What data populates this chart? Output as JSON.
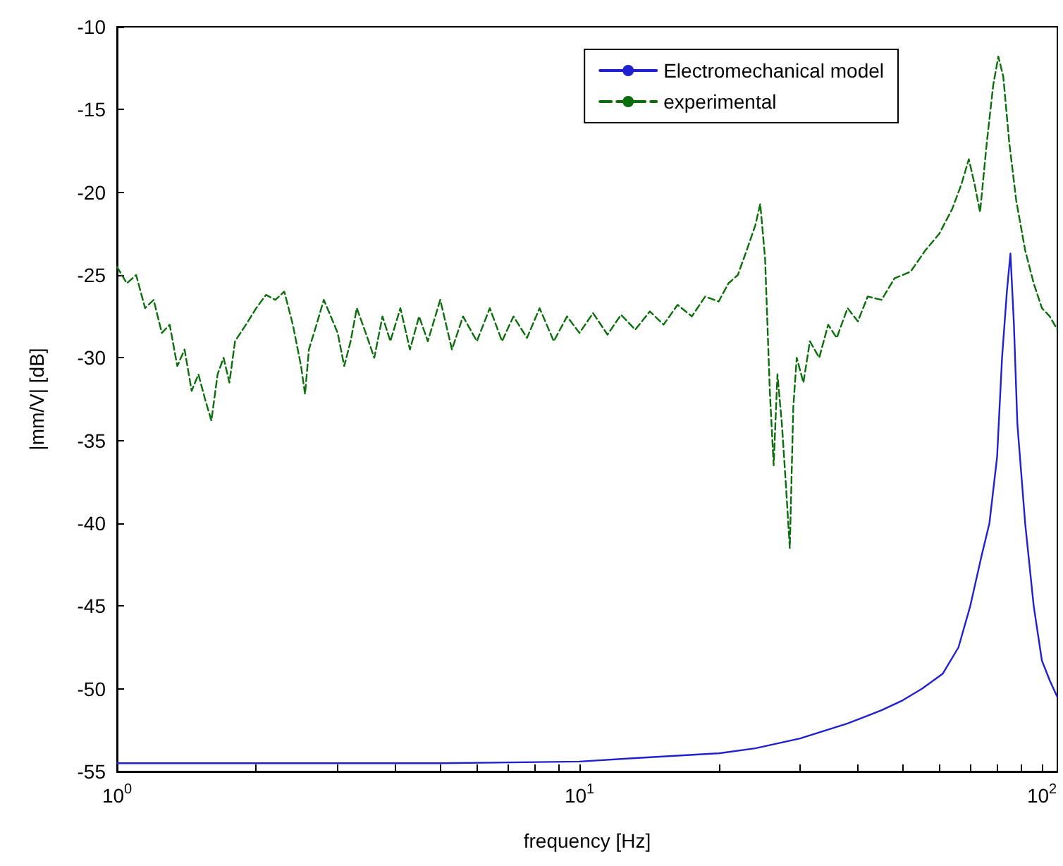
{
  "chart_data": {
    "type": "line",
    "xlabel": "frequency [Hz]",
    "ylabel": "|mm/V| [dB]",
    "log": "x",
    "xlim": [
      1,
      108
    ],
    "ylim": [
      -55,
      -10
    ],
    "xticks": [
      {
        "value": 1,
        "label": "10$^{0}$"
      },
      {
        "value": 2,
        "label": null
      },
      {
        "value": 3,
        "label": null
      },
      {
        "value": 4,
        "label": null
      },
      {
        "value": 5,
        "label": null
      },
      {
        "value": 6,
        "label": null
      },
      {
        "value": 7,
        "label": null
      },
      {
        "value": 8,
        "label": null
      },
      {
        "value": 9,
        "label": null
      },
      {
        "value": 10,
        "label": "10$^{1}$"
      },
      {
        "value": 20,
        "label": null
      },
      {
        "value": 30,
        "label": null
      },
      {
        "value": 40,
        "label": null
      },
      {
        "value": 50,
        "label": null
      },
      {
        "value": 60,
        "label": null
      },
      {
        "value": 70,
        "label": null
      },
      {
        "value": 80,
        "label": null
      },
      {
        "value": 90,
        "label": null
      },
      {
        "value": 100,
        "label": "10$^{2}$"
      }
    ],
    "yticks": [
      -55,
      -50,
      -45,
      -40,
      -35,
      -30,
      -25,
      -20,
      -15,
      -10
    ],
    "grid": false,
    "legend": "top right",
    "marker": "none",
    "series": [
      {
        "name": "Electromechanical model",
        "color": "#2020d0",
        "line_style": "solid",
        "x": [
          1,
          5,
          10,
          13,
          20,
          24,
          30,
          38,
          45,
          50,
          55,
          61,
          66,
          70,
          74,
          77,
          80,
          82,
          84,
          85.5,
          87,
          88.5,
          92,
          96,
          100,
          104,
          108
        ],
        "values": [
          -54.5,
          -54.5,
          -54.4,
          -54.2,
          -53.9,
          -53.6,
          -53,
          -52.1,
          -51.3,
          -50.7,
          -50,
          -49.1,
          -47.5,
          -45,
          -42,
          -40,
          -36,
          -30,
          -26,
          -23.7,
          -28,
          -34,
          -40,
          -45,
          -48.3,
          -49.5,
          -50.5
        ]
      },
      {
        "name": "experimental",
        "color": "#0a6e0a",
        "line_style": "dashed",
        "x": [
          1,
          1.05,
          1.1,
          1.15,
          1.2,
          1.25,
          1.3,
          1.35,
          1.4,
          1.45,
          1.5,
          1.55,
          1.6,
          1.65,
          1.7,
          1.75,
          1.8,
          1.9,
          2,
          2.1,
          2.2,
          2.3,
          2.4,
          2.5,
          2.55,
          2.6,
          2.7,
          2.8,
          2.9,
          3,
          3.1,
          3.2,
          3.3,
          3.45,
          3.6,
          3.75,
          3.9,
          4.1,
          4.3,
          4.5,
          4.7,
          5,
          5.3,
          5.6,
          6,
          6.4,
          6.8,
          7.2,
          7.7,
          8.2,
          8.8,
          9.4,
          10,
          10.7,
          11.5,
          12.3,
          13.2,
          14.2,
          15.2,
          16.3,
          17.5,
          18.7,
          20,
          21,
          22,
          23,
          24,
          24.6,
          25.2,
          25.8,
          26.3,
          26.8,
          27.4,
          28,
          28.5,
          29,
          29.5,
          30.5,
          31.5,
          33,
          34.5,
          36,
          38,
          40,
          42,
          45,
          48,
          52,
          56,
          60,
          64,
          67,
          69.5,
          71.5,
          73.5,
          76,
          78.5,
          80.5,
          82.5,
          85,
          88,
          92,
          96,
          100,
          104,
          108
        ],
        "values": [
          -24.5,
          -25.5,
          -25,
          -27,
          -26.5,
          -28.5,
          -28,
          -30.5,
          -29.5,
          -32,
          -31,
          -32.5,
          -33.8,
          -31,
          -30,
          -31.5,
          -29,
          -28,
          -27,
          -26.2,
          -26.5,
          -26,
          -28,
          -30.5,
          -32.2,
          -29.5,
          -28,
          -26.5,
          -27.5,
          -28.5,
          -30.5,
          -29,
          -27,
          -28.5,
          -30,
          -27.5,
          -29,
          -27,
          -29.5,
          -27.5,
          -29,
          -26.5,
          -29.5,
          -27.5,
          -29,
          -27,
          -29,
          -27.5,
          -28.8,
          -27,
          -29,
          -27.5,
          -28.5,
          -27.3,
          -28.6,
          -27.4,
          -28.3,
          -27.2,
          -28,
          -26.8,
          -27.5,
          -26.3,
          -26.6,
          -25.5,
          -25,
          -23.5,
          -22,
          -20.7,
          -24,
          -32,
          -36.5,
          -31,
          -34,
          -38,
          -41.5,
          -33,
          -30,
          -31.5,
          -29,
          -30,
          -28,
          -28.8,
          -27,
          -27.8,
          -26.3,
          -26.5,
          -25.2,
          -24.8,
          -23.5,
          -22.5,
          -21,
          -19.5,
          -18,
          -19.5,
          -21.2,
          -17,
          -13.5,
          -11.8,
          -13,
          -17,
          -20.5,
          -23.5,
          -25.5,
          -27,
          -27.5,
          -28.3
        ]
      }
    ]
  }
}
